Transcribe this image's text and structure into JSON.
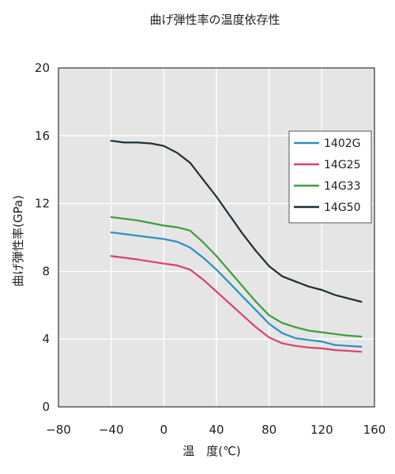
{
  "chart_data": {
    "type": "line",
    "title": "曲げ弾性率の温度依存性",
    "xlabel": "温　度(℃)",
    "ylabel": "曲げ弾性率(GPa)",
    "xlim": [
      -80,
      160
    ],
    "ylim": [
      0,
      20
    ],
    "xticks": [
      -80,
      -40,
      0,
      40,
      80,
      120,
      160
    ],
    "yticks": [
      0,
      4,
      8,
      12,
      16,
      20
    ],
    "grid": true,
    "legend_position": "top-right",
    "plot_background": "#e5e5e5",
    "series": [
      {
        "name": "1402G",
        "color": "#2b8fc2",
        "points": [
          [
            -40,
            10.3
          ],
          [
            -20,
            10.1
          ],
          [
            0,
            9.9
          ],
          [
            10,
            9.75
          ],
          [
            20,
            9.4
          ],
          [
            30,
            8.8
          ],
          [
            40,
            8.1
          ],
          [
            50,
            7.3
          ],
          [
            60,
            6.5
          ],
          [
            70,
            5.7
          ],
          [
            80,
            4.9
          ],
          [
            90,
            4.35
          ],
          [
            100,
            4.05
          ],
          [
            110,
            3.95
          ],
          [
            120,
            3.85
          ],
          [
            130,
            3.65
          ],
          [
            140,
            3.6
          ],
          [
            150,
            3.55
          ]
        ]
      },
      {
        "name": "14G25",
        "color": "#d94070",
        "points": [
          [
            -40,
            8.9
          ],
          [
            -20,
            8.7
          ],
          [
            0,
            8.45
          ],
          [
            10,
            8.35
          ],
          [
            20,
            8.1
          ],
          [
            30,
            7.5
          ],
          [
            40,
            6.8
          ],
          [
            50,
            6.1
          ],
          [
            60,
            5.4
          ],
          [
            70,
            4.7
          ],
          [
            80,
            4.1
          ],
          [
            90,
            3.75
          ],
          [
            100,
            3.6
          ],
          [
            110,
            3.5
          ],
          [
            120,
            3.45
          ],
          [
            130,
            3.35
          ],
          [
            140,
            3.3
          ],
          [
            150,
            3.25
          ]
        ]
      },
      {
        "name": "14G33",
        "color": "#3f9b3f",
        "points": [
          [
            -40,
            11.2
          ],
          [
            -20,
            11.0
          ],
          [
            0,
            10.7
          ],
          [
            10,
            10.6
          ],
          [
            20,
            10.4
          ],
          [
            30,
            9.7
          ],
          [
            40,
            8.9
          ],
          [
            50,
            8.0
          ],
          [
            60,
            7.1
          ],
          [
            70,
            6.2
          ],
          [
            80,
            5.4
          ],
          [
            90,
            4.95
          ],
          [
            100,
            4.7
          ],
          [
            110,
            4.5
          ],
          [
            120,
            4.4
          ],
          [
            130,
            4.3
          ],
          [
            140,
            4.2
          ],
          [
            150,
            4.15
          ]
        ]
      },
      {
        "name": "14G50",
        "color": "#1c2e38",
        "points": [
          [
            -40,
            15.7
          ],
          [
            -30,
            15.6
          ],
          [
            -20,
            15.6
          ],
          [
            -10,
            15.55
          ],
          [
            0,
            15.4
          ],
          [
            10,
            15.0
          ],
          [
            20,
            14.4
          ],
          [
            30,
            13.4
          ],
          [
            40,
            12.4
          ],
          [
            50,
            11.3
          ],
          [
            60,
            10.2
          ],
          [
            70,
            9.2
          ],
          [
            80,
            8.3
          ],
          [
            90,
            7.7
          ],
          [
            100,
            7.4
          ],
          [
            110,
            7.1
          ],
          [
            120,
            6.9
          ],
          [
            130,
            6.6
          ],
          [
            140,
            6.4
          ],
          [
            150,
            6.2
          ]
        ]
      }
    ]
  }
}
